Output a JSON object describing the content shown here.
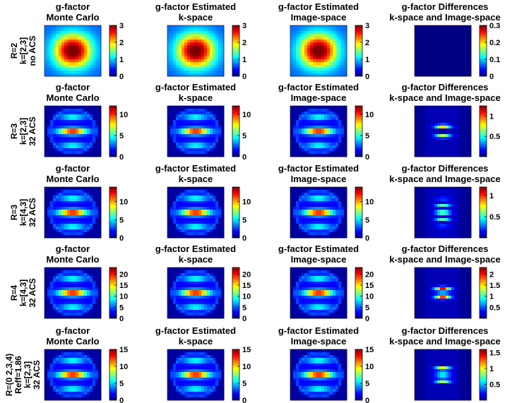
{
  "chart_data": {
    "type": "heatmap",
    "colormap": "jet",
    "columns": [
      {
        "title_lines": [
          "g-factor",
          "Monte Carlo"
        ]
      },
      {
        "title_lines": [
          "g-factor Estimated",
          "k-space"
        ]
      },
      {
        "title_lines": [
          "g-factor Estimated",
          "Image-space"
        ]
      },
      {
        "title_lines": [
          "g-factor Differences",
          "k-space and Image-space"
        ]
      }
    ],
    "rows": [
      {
        "label_lines": [
          "R=2",
          "k=[2,3]",
          "no ACS"
        ],
        "pattern": "alias2",
        "colorbars": [
          {
            "range": [
              0,
              3
            ],
            "ticks": [
              "0",
              "1",
              "2",
              "3"
            ]
          },
          {
            "range": [
              0,
              3
            ],
            "ticks": [
              "0",
              "1",
              "2",
              "3"
            ]
          },
          {
            "range": [
              0,
              3
            ],
            "ticks": [
              "0",
              "1",
              "2",
              "3"
            ]
          },
          {
            "range": [
              0,
              0.3
            ],
            "ticks": [
              "0",
              "0.1",
              "0.2",
              "0.3"
            ]
          }
        ]
      },
      {
        "label_lines": [
          "R=3",
          "k=[2,3]",
          "32 ACS"
        ],
        "pattern": "ellipse",
        "colorbars": [
          {
            "range": [
              0,
              12
            ],
            "ticks": [
              "0",
              "5",
              "10"
            ]
          },
          {
            "range": [
              0,
              12
            ],
            "ticks": [
              "0",
              "5",
              "10"
            ]
          },
          {
            "range": [
              0,
              12
            ],
            "ticks": [
              "0",
              "5",
              "10"
            ]
          },
          {
            "range": [
              0,
              1.25
            ],
            "ticks": [
              "0.5",
              "1"
            ]
          }
        ]
      },
      {
        "label_lines": [
          "R=3",
          "k=[4,3]",
          "32 ACS"
        ],
        "pattern": "ellipse",
        "colorbars": [
          {
            "range": [
              0,
              14
            ],
            "ticks": [
              "0",
              "5",
              "10"
            ]
          },
          {
            "range": [
              0,
              14
            ],
            "ticks": [
              "0",
              "5",
              "10"
            ]
          },
          {
            "range": [
              0,
              14
            ],
            "ticks": [
              "0",
              "5",
              "10"
            ]
          },
          {
            "range": [
              0,
              1.2
            ],
            "ticks": [
              "0.5",
              "1"
            ]
          }
        ]
      },
      {
        "label_lines": [
          "R=4",
          "k=[4,3]",
          "32 ACS"
        ],
        "pattern": "ellipse",
        "colorbars": [
          {
            "range": [
              0,
              23
            ],
            "ticks": [
              "0",
              "5",
              "10",
              "15",
              "20"
            ]
          },
          {
            "range": [
              0,
              23
            ],
            "ticks": [
              "0",
              "5",
              "10",
              "15",
              "20"
            ]
          },
          {
            "range": [
              0,
              23
            ],
            "ticks": [
              "0",
              "5",
              "10",
              "15",
              "20"
            ]
          },
          {
            "range": [
              0,
              2.3
            ],
            "ticks": [
              "0.5",
              "1",
              "1.5",
              "2"
            ]
          }
        ]
      },
      {
        "label_lines": [
          "R=(0 2,3,4)",
          "Reff=1.86",
          "k=[2,3]",
          "32 ACS"
        ],
        "pattern": "ellipse",
        "colorbars": [
          {
            "range": [
              0,
              15
            ],
            "ticks": [
              "0",
              "5",
              "10",
              "15"
            ]
          },
          {
            "range": [
              0,
              15
            ],
            "ticks": [
              "0",
              "5",
              "10",
              "15"
            ]
          },
          {
            "range": [
              0,
              15
            ],
            "ticks": [
              "0",
              "5",
              "10",
              "15"
            ]
          },
          {
            "range": [
              0,
              1.6
            ],
            "ticks": [
              "0.5",
              "1",
              "1.5"
            ]
          }
        ]
      }
    ]
  }
}
